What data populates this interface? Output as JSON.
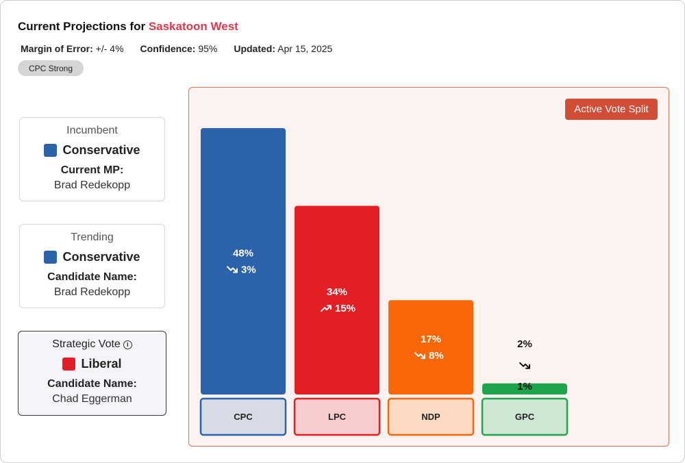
{
  "header": {
    "title_prefix": "Current Projections for ",
    "riding": "Saskatoon West",
    "meta": [
      {
        "label": "Margin of Error:",
        "value": "+/- 4%"
      },
      {
        "label": "Confidence:",
        "value": "95%"
      },
      {
        "label": "Updated:",
        "value": "Apr 15, 2025"
      }
    ],
    "status_pill": "CPC Strong"
  },
  "cards": {
    "incumbent": {
      "heading": "Incumbent",
      "party": "Conservative",
      "party_color": "#2b62aa",
      "label": "Current MP:",
      "name": "Brad Redekopp"
    },
    "trending": {
      "heading": "Trending",
      "party": "Conservative",
      "party_color": "#2b62aa",
      "label": "Candidate Name:",
      "name": "Brad Redekopp"
    },
    "strategic": {
      "heading": "Strategic Vote",
      "info_icon": "info-circle-icon",
      "party": "Liberal",
      "party_color": "#e31e24",
      "label": "Candidate Name:",
      "name": "Chad Eggerman"
    }
  },
  "chart_panel": {
    "toggle_label": "Active Vote Split"
  },
  "chart_data": {
    "type": "bar",
    "categories": [
      "CPC",
      "LPC",
      "NDP",
      "GPC"
    ],
    "values": [
      48,
      34,
      17,
      2
    ],
    "value_labels": [
      "48%",
      "34%",
      "17%",
      "2%"
    ],
    "trend": [
      {
        "direction": "down",
        "label": "3%"
      },
      {
        "direction": "up",
        "label": "15%"
      },
      {
        "direction": "down",
        "label": "8%"
      },
      {
        "direction": "down",
        "label": "1%"
      }
    ],
    "colors": [
      "#2b62aa",
      "#e31e24",
      "#f76707",
      "#1ea44b"
    ],
    "chip_fill": [
      "#d6dbe6",
      "#f8cccd",
      "#fddac4",
      "#cfe6d3"
    ],
    "ylim": [
      0,
      48
    ]
  }
}
